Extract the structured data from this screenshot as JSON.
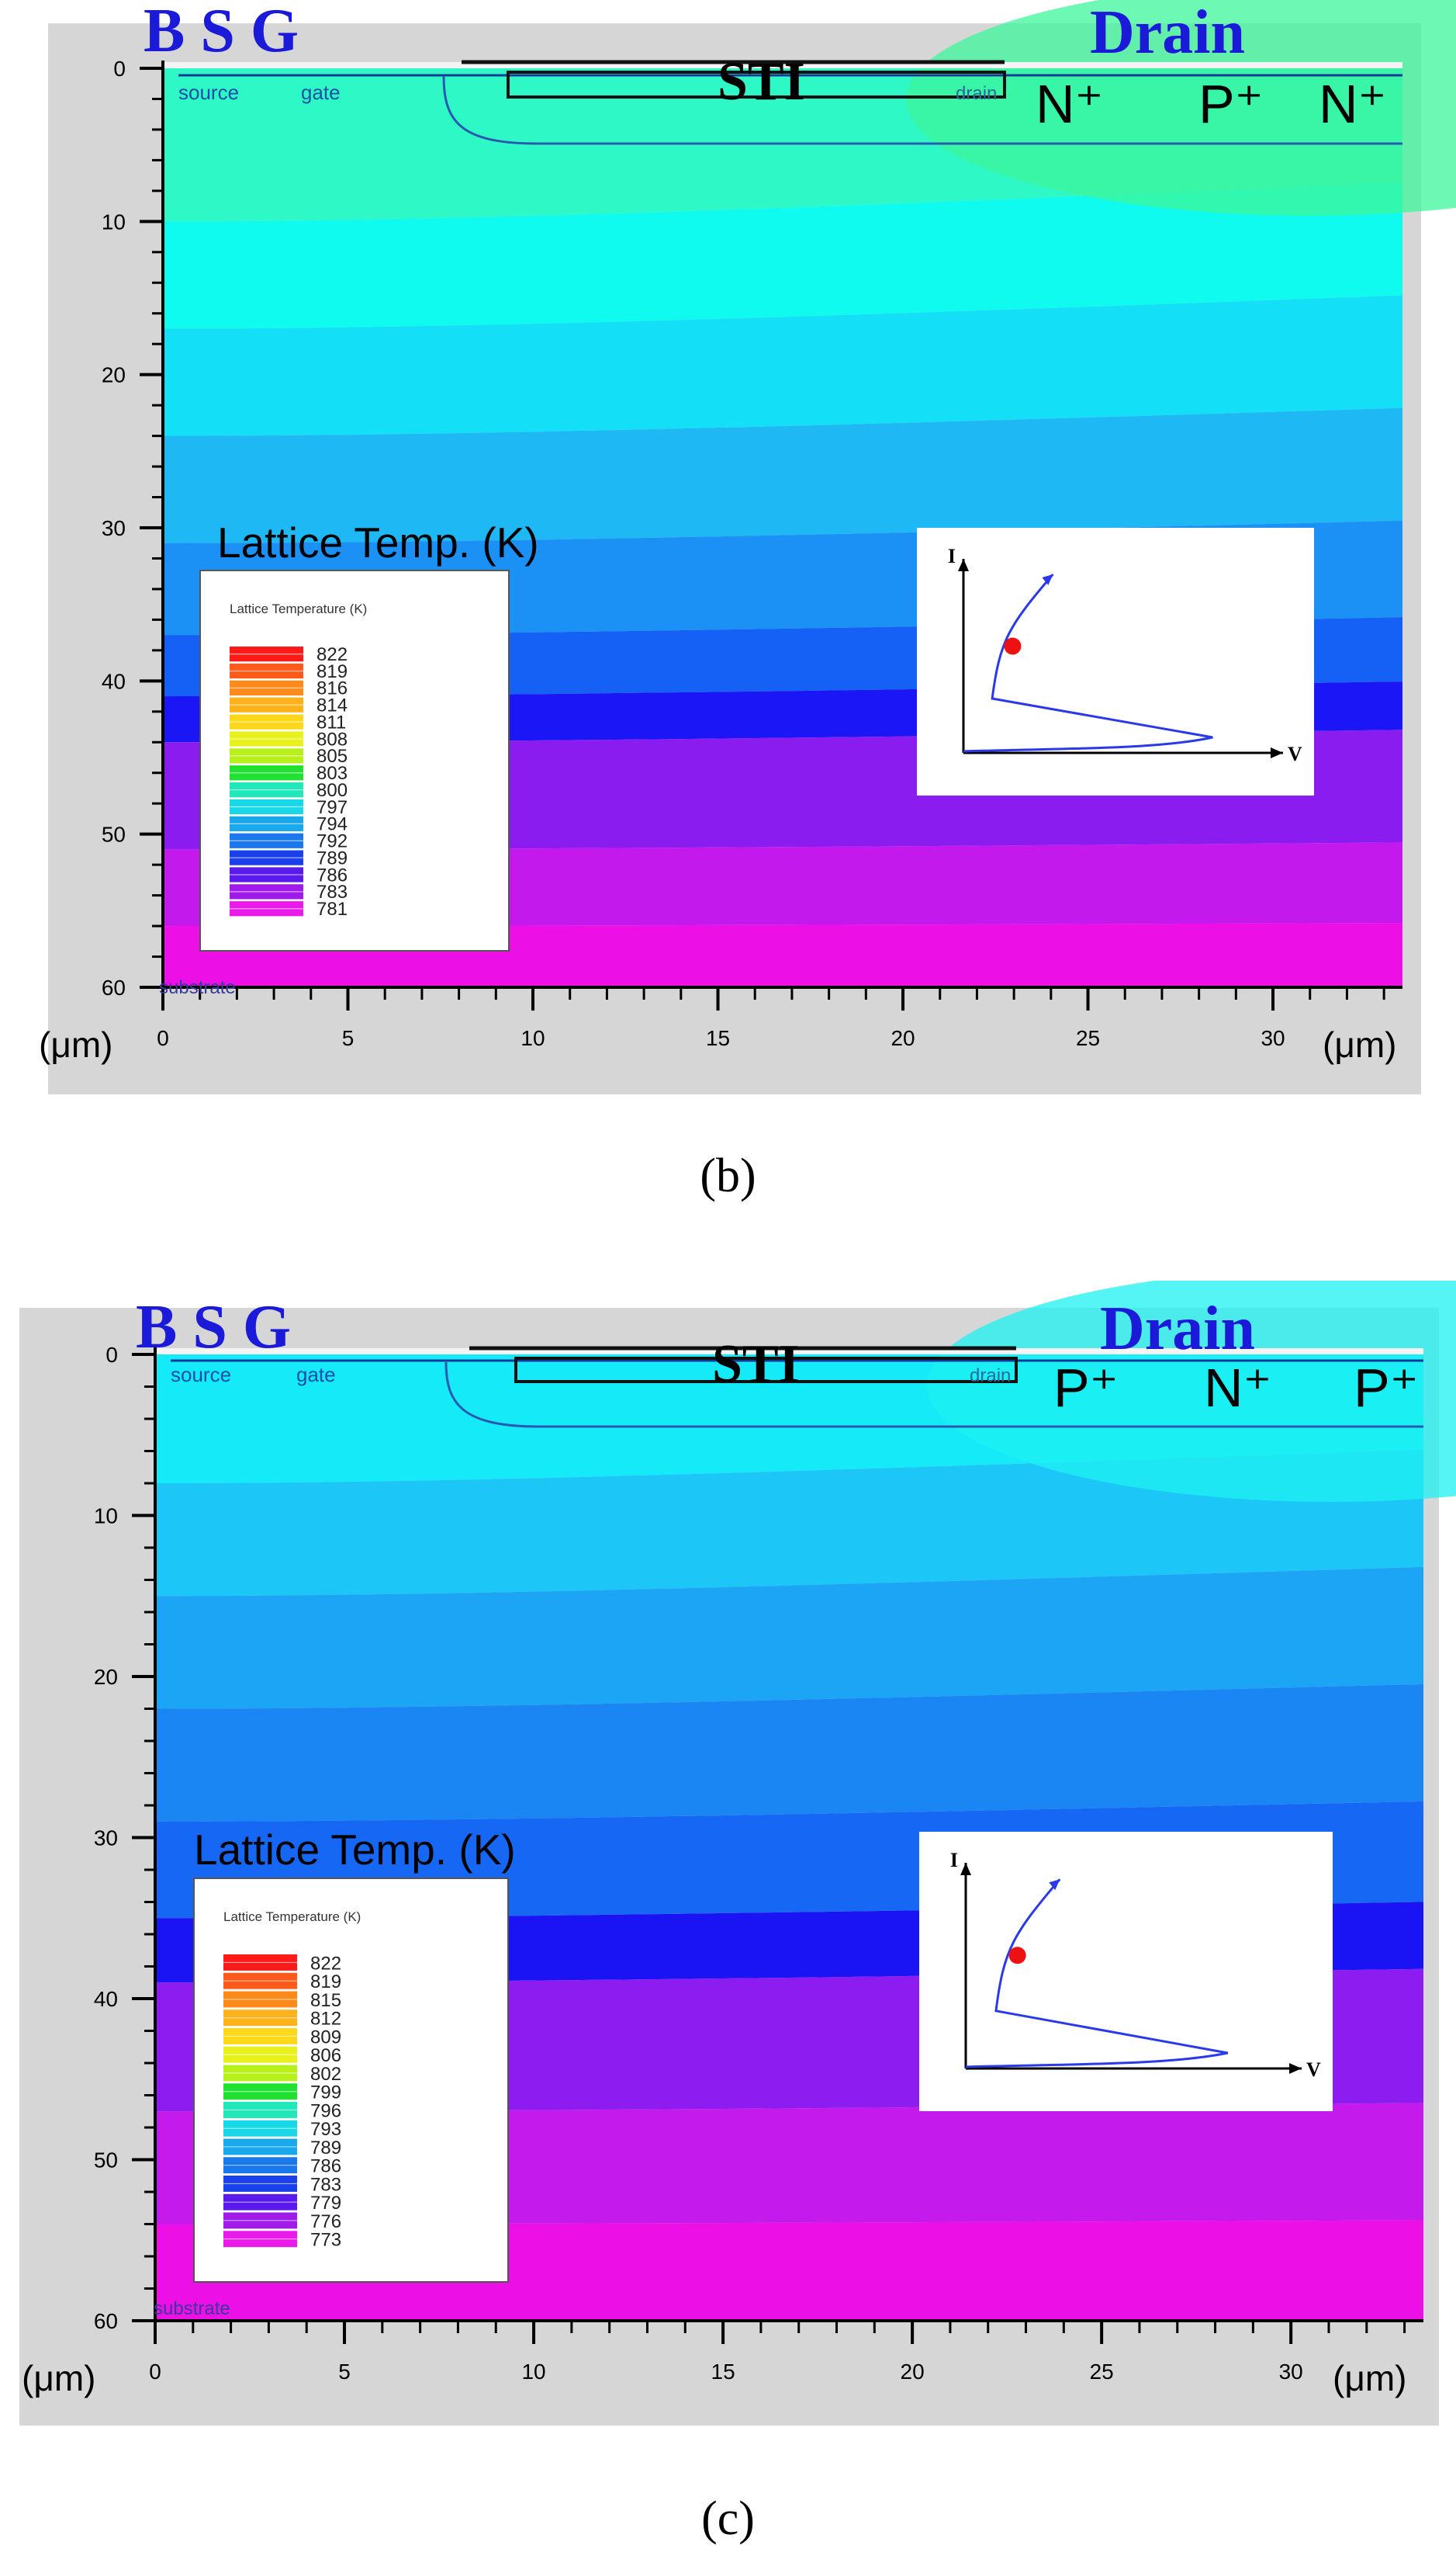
{
  "panels": [
    {
      "id": "b",
      "caption": "(b)",
      "labels": {
        "terminals_left": "B S G",
        "drain": "Drain",
        "sti": "STI",
        "source": "source",
        "gate": "gate",
        "drain_small": "drain",
        "substrate": "substrate",
        "diffusions": [
          "N⁺",
          "P⁺",
          "N⁺"
        ],
        "unit_left": "(μm)",
        "unit_right": "(μm)",
        "legend_heading": "Lattice Temp. (K)",
        "legend_title": "Lattice Temperature (K)",
        "iv_y": "I",
        "iv_x": "V"
      },
      "legend_values": [
        "822",
        "819",
        "816",
        "814",
        "811",
        "808",
        "805",
        "803",
        "800",
        "797",
        "794",
        "792",
        "789",
        "786",
        "783",
        "781"
      ],
      "chart_data": {
        "type": "heatmap",
        "quantity": "Lattice Temperature (K)",
        "xlabel": "(μm)",
        "ylabel": "(μm)",
        "xlim": [
          0,
          33.5
        ],
        "ylim": [
          0,
          60
        ],
        "xticks": [
          0,
          5,
          10,
          15,
          20,
          25,
          30
        ],
        "yticks": [
          0,
          10,
          20,
          30,
          40,
          50,
          60
        ],
        "temperature_range_K": [
          781,
          822
        ],
        "bands_by_depth": [
          {
            "depth_um": [
              0,
              10
            ],
            "temperature_K": 802,
            "color": "#2ef8c6"
          },
          {
            "depth_um": [
              10,
              17
            ],
            "temperature_K": 800,
            "color": "#10fbef"
          },
          {
            "depth_um": [
              17,
              24
            ],
            "temperature_K": 797,
            "color": "#13e0f6"
          },
          {
            "depth_um": [
              24,
              31
            ],
            "temperature_K": 794,
            "color": "#1eb8f4"
          },
          {
            "depth_um": [
              31,
              37
            ],
            "temperature_K": 792,
            "color": "#1b90f5"
          },
          {
            "depth_um": [
              37,
              41
            ],
            "temperature_K": 789,
            "color": "#1560f5"
          },
          {
            "depth_um": [
              41,
              44
            ],
            "temperature_K": 789,
            "color": "#1a16f5"
          },
          {
            "depth_um": [
              44,
              51
            ],
            "temperature_K": 786,
            "color": "#8a1cf0"
          },
          {
            "depth_um": [
              51,
              56
            ],
            "temperature_K": 783,
            "color": "#c419ec"
          },
          {
            "depth_um": [
              56,
              60
            ],
            "temperature_K": 781,
            "color": "#ec10e6"
          }
        ]
      },
      "iv_point": {
        "v": 0.22,
        "i": 0.55
      }
    },
    {
      "id": "c",
      "caption": "(c)",
      "labels": {
        "terminals_left": "B S G",
        "drain": "Drain",
        "sti": "STI",
        "source": "source",
        "gate": "gate",
        "drain_small": "drain",
        "substrate": "substrate",
        "diffusions": [
          "P⁺",
          "N⁺",
          "P⁺"
        ],
        "unit_left": "(μm)",
        "unit_right": "(μm)",
        "legend_heading": "Lattice Temp. (K)",
        "legend_title": "Lattice Temperature (K)",
        "iv_y": "I",
        "iv_x": "V"
      },
      "legend_values": [
        "822",
        "819",
        "815",
        "812",
        "809",
        "806",
        "802",
        "799",
        "796",
        "793",
        "789",
        "786",
        "783",
        "779",
        "776",
        "773"
      ],
      "chart_data": {
        "type": "heatmap",
        "quantity": "Lattice Temperature (K)",
        "xlabel": "(μm)",
        "ylabel": "(μm)",
        "xlim": [
          0,
          33.5
        ],
        "ylim": [
          0,
          60
        ],
        "xticks": [
          0,
          5,
          10,
          15,
          20,
          25,
          30
        ],
        "yticks": [
          0,
          10,
          20,
          30,
          40,
          50,
          60
        ],
        "temperature_range_K": [
          773,
          822
        ],
        "bands_by_depth": [
          {
            "depth_um": [
              0,
              8
            ],
            "temperature_K": 799,
            "color": "#14eaf8"
          },
          {
            "depth_um": [
              8,
              15
            ],
            "temperature_K": 796,
            "color": "#1cc6f6"
          },
          {
            "depth_um": [
              15,
              22
            ],
            "temperature_K": 793,
            "color": "#1ca4f5"
          },
          {
            "depth_um": [
              22,
              29
            ],
            "temperature_K": 789,
            "color": "#1a86f4"
          },
          {
            "depth_um": [
              29,
              35
            ],
            "temperature_K": 786,
            "color": "#1667f3"
          },
          {
            "depth_um": [
              35,
              39
            ],
            "temperature_K": 783,
            "color": "#1a14f5"
          },
          {
            "depth_um": [
              39,
              47
            ],
            "temperature_K": 779,
            "color": "#8c1cf0"
          },
          {
            "depth_um": [
              47,
              54
            ],
            "temperature_K": 776,
            "color": "#c51aec"
          },
          {
            "depth_um": [
              54,
              60
            ],
            "temperature_K": 773,
            "color": "#ec10e6"
          }
        ]
      },
      "iv_point": {
        "v": 0.22,
        "i": 0.55
      }
    }
  ]
}
